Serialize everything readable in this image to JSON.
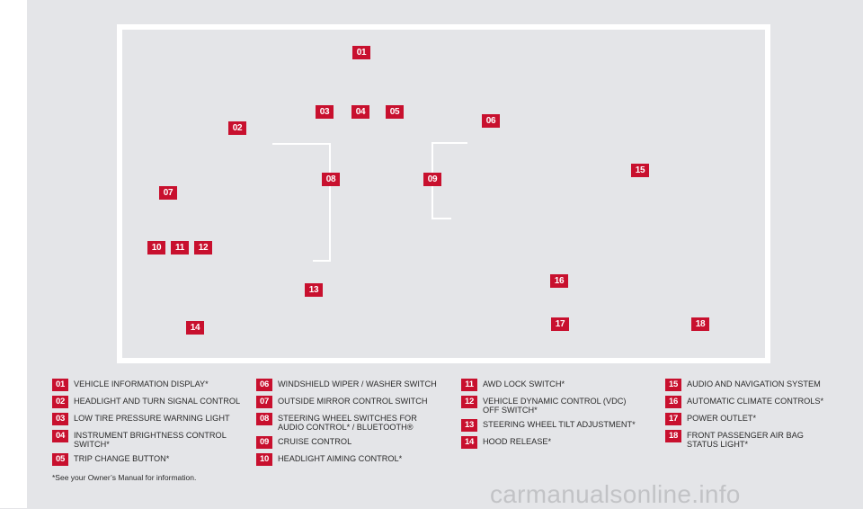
{
  "colors": {
    "accent": "#c8102e",
    "background": "#e4e5e8",
    "frame": "#ffffff"
  },
  "diagram_badges": [
    "01",
    "02",
    "03",
    "04",
    "05",
    "06",
    "07",
    "08",
    "09",
    "10",
    "11",
    "12",
    "13",
    "14",
    "15",
    "16",
    "17",
    "18"
  ],
  "legend": [
    {
      "num": "01",
      "text": "VEHICLE INFORMATION DISPLAY*"
    },
    {
      "num": "02",
      "text": "HEADLIGHT AND TURN SIGNAL CONTROL"
    },
    {
      "num": "03",
      "text": "LOW TIRE PRESSURE WARNING LIGHT"
    },
    {
      "num": "04",
      "text": "INSTRUMENT BRIGHTNESS CONTROL SWITCH*"
    },
    {
      "num": "05",
      "text": "TRIP CHANGE BUTTON*"
    },
    {
      "num": "06",
      "text": "WINDSHIELD WIPER / WASHER SWITCH"
    },
    {
      "num": "07",
      "text": "OUTSIDE MIRROR CONTROL SWITCH"
    },
    {
      "num": "08",
      "text": "STEERING WHEEL SWITCHES FOR AUDIO CONTROL* / BLUETOOTH®"
    },
    {
      "num": "09",
      "text": "CRUISE CONTROL"
    },
    {
      "num": "10",
      "text": "HEADLIGHT AIMING CONTROL*"
    },
    {
      "num": "11",
      "text": "AWD LOCK SWITCH*"
    },
    {
      "num": "12",
      "text": "VEHICLE DYNAMIC CONTROL (VDC) OFF SWITCH*"
    },
    {
      "num": "13",
      "text": "STEERING WHEEL TILT ADJUSTMENT*"
    },
    {
      "num": "14",
      "text": "HOOD RELEASE*"
    },
    {
      "num": "15",
      "text": "AUDIO AND NAVIGATION SYSTEM"
    },
    {
      "num": "16",
      "text": "AUTOMATIC CLIMATE CONTROLS*"
    },
    {
      "num": "17",
      "text": "POWER OUTLET*"
    },
    {
      "num": "18",
      "text": "FRONT PASSENGER AIR BAG STATUS LIGHT*"
    }
  ],
  "footnote": "*See your Owner’s Manual for information.",
  "watermark": "carmanualsonline.info"
}
